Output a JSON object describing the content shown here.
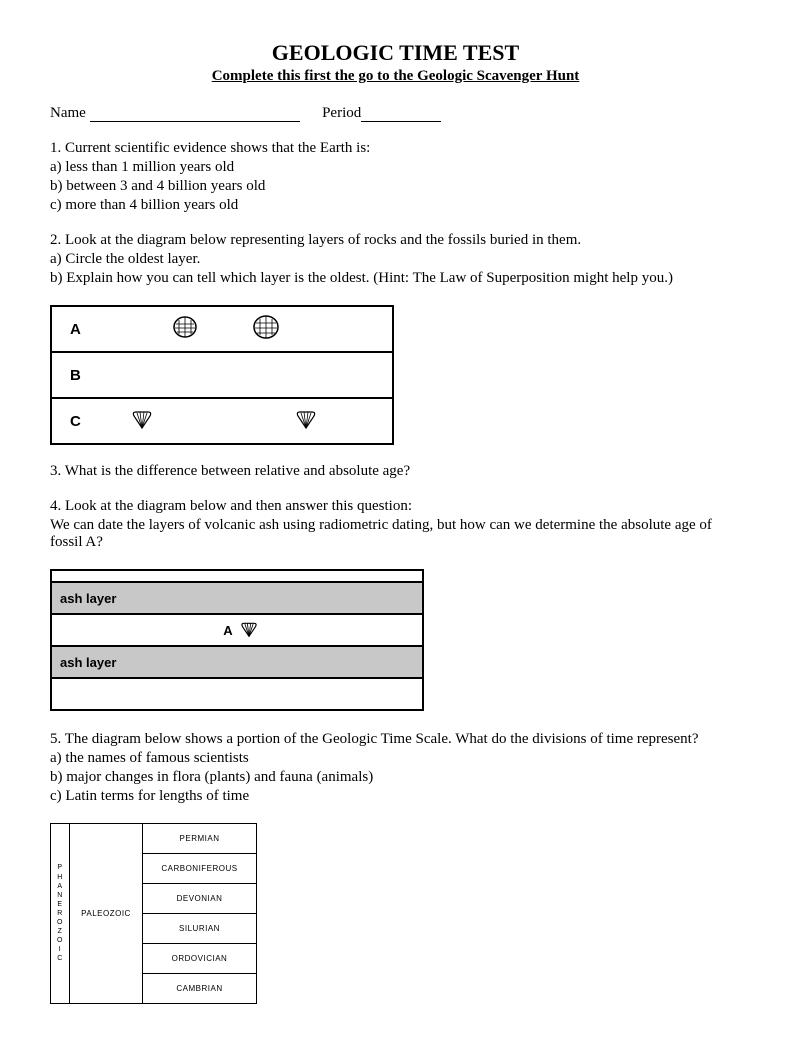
{
  "header": {
    "title": "GEOLOGIC TIME TEST",
    "subtitle": "Complete this first the go to the Geologic Scavenger Hunt",
    "name_label": "Name",
    "period_label": "Period"
  },
  "q1": {
    "prompt": "1. Current scientific evidence shows that the Earth is:",
    "a": "a) less than 1 million years old",
    "b": "b) between 3 and 4 billion years old",
    "c": "c) more than 4 billion years old"
  },
  "q2": {
    "prompt": "2. Look at the diagram below representing layers of rocks and the fossils buried in them.",
    "a": "a) Circle the oldest layer.",
    "b": "b) Explain how you can tell which layer is the oldest. (Hint: The Law of Superposition might help you.)"
  },
  "rock_layers": {
    "labels": [
      "A",
      "B",
      "C"
    ]
  },
  "q3": {
    "prompt": "3. What is the difference between relative and absolute age?"
  },
  "q4": {
    "prompt": "4. Look at the diagram below and then answer this question:",
    "text": "We can date the layers of volcanic ash using radiometric dating, but how can we determine the absolute age of fossil A?"
  },
  "ash_diagram": {
    "ash_label": "ash layer",
    "fossil_label": "A"
  },
  "q5": {
    "prompt": "5. The diagram below shows a portion of the Geologic Time Scale. What do the divisions of time represent?",
    "a": "a) the names of famous scientists",
    "b": "b) major changes in flora (plants) and fauna (animals)",
    "c": "c) Latin terms for lengths of time"
  },
  "time_scale": {
    "eon": "PHANEROZOIC",
    "era": "PALEOZOIC",
    "periods": [
      "PERMIAN",
      "CARBONIFEROUS",
      "DEVONIAN",
      "SILURIAN",
      "ORDOVICIAN",
      "CAMBRIAN"
    ]
  }
}
